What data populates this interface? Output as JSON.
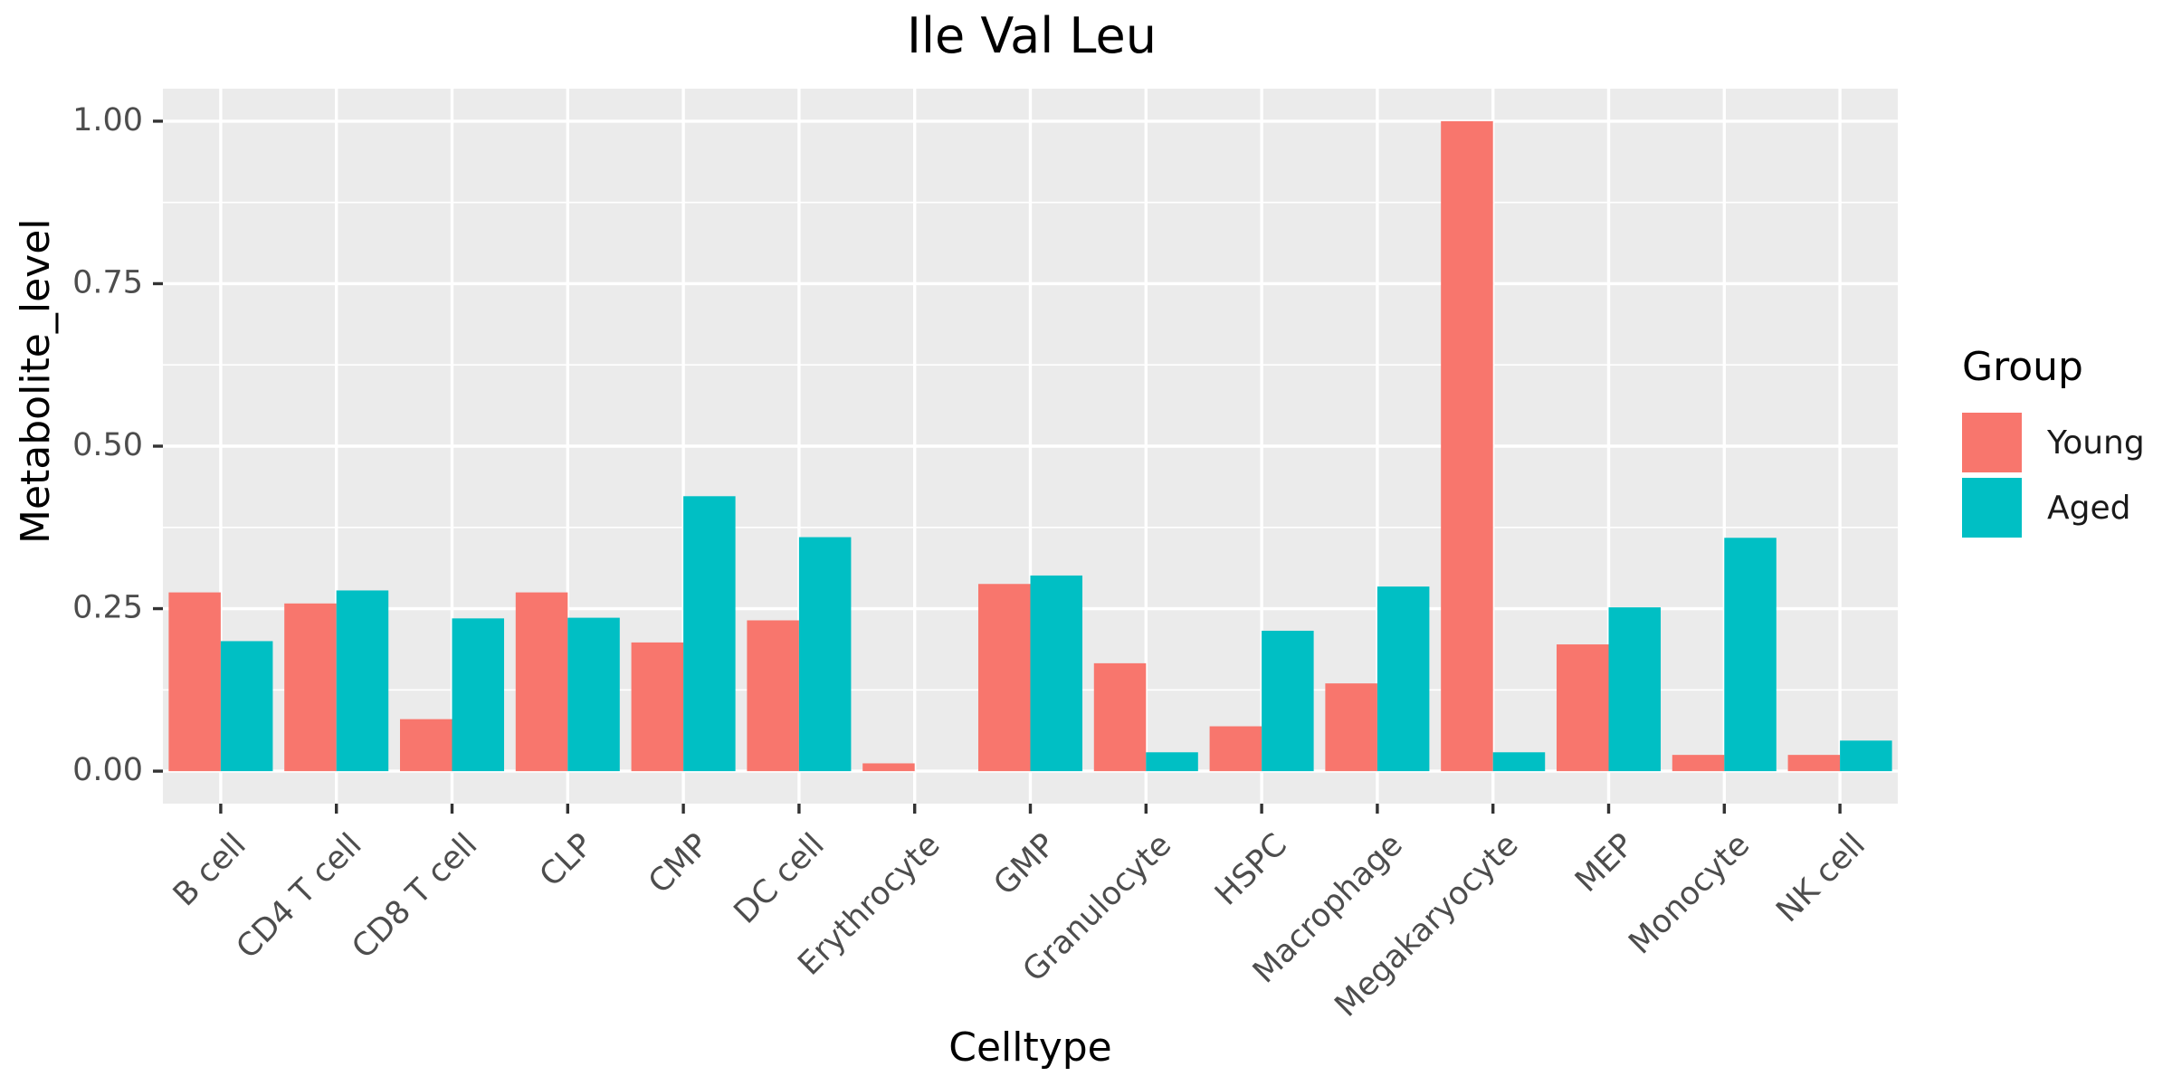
{
  "chart_data": {
    "type": "bar",
    "title": "Ile Val Leu",
    "xlabel": "Celltype",
    "ylabel": "Metabolite_level",
    "categories": [
      "B cell",
      "CD4 T cell",
      "CD8 T cell",
      "CLP",
      "CMP",
      "DC cell",
      "Erythrocyte",
      "GMP",
      "Granulocyte",
      "HSPC",
      "Macrophage",
      "Megakaryocyte",
      "MEP",
      "Monocyte",
      "NK cell"
    ],
    "series": [
      {
        "name": "Young",
        "color": "#F8766D",
        "values": [
          0.275,
          0.258,
          0.08,
          0.275,
          0.198,
          0.232,
          0.012,
          0.288,
          0.166,
          0.069,
          0.135,
          1.0,
          0.195,
          0.025,
          0.025
        ]
      },
      {
        "name": "Aged",
        "color": "#00BFC4",
        "values": [
          0.2,
          0.278,
          0.235,
          0.236,
          0.423,
          0.36,
          0.0,
          0.301,
          0.029,
          0.216,
          0.284,
          0.029,
          0.252,
          0.359,
          0.047
        ]
      }
    ],
    "ylim": [
      -0.05,
      1.05
    ],
    "yticks": [
      0.0,
      0.25,
      0.5,
      0.75,
      1.0
    ],
    "ytick_labels": [
      "0.00",
      "0.25",
      "0.50",
      "0.75",
      "1.00"
    ],
    "legend_title": "Group",
    "legend_position": "right",
    "grid": true,
    "panel_color": "#EBEBEB"
  }
}
